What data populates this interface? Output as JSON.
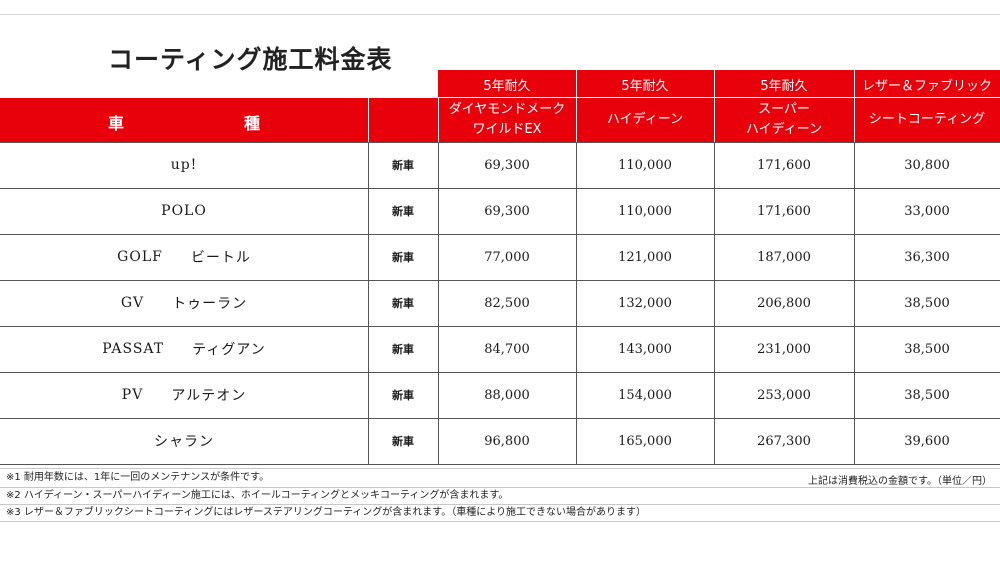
{
  "title": "コーティング施工料金表",
  "header": {
    "car_label_1": "車",
    "car_label_2": "種",
    "columns": [
      {
        "top": "5年耐久",
        "name_1": "ダイヤモンドメーク",
        "name_2": "ワイルドEX"
      },
      {
        "top": "5年耐久",
        "name_1": "ハイディーン",
        "name_2": ""
      },
      {
        "top": "5年耐久",
        "name_1": "スーパー",
        "name_2": "ハイディーン"
      },
      {
        "top": "レザー＆ファブリック",
        "name_1": "シートコーティング",
        "name_2": ""
      }
    ]
  },
  "rows": [
    {
      "model": "up!",
      "model_jp": "",
      "kind": "新車",
      "p1": "69,300",
      "p2": "110,000",
      "p3": "171,600",
      "p4": "30,800"
    },
    {
      "model": "POLO",
      "model_jp": "",
      "kind": "新車",
      "p1": "69,300",
      "p2": "110,000",
      "p3": "171,600",
      "p4": "33,000"
    },
    {
      "model": "GOLF",
      "model_jp": "ビートル",
      "kind": "新車",
      "p1": "77,000",
      "p2": "121,000",
      "p3": "187,000",
      "p4": "36,300"
    },
    {
      "model": "GV",
      "model_jp": "トゥーラン",
      "kind": "新車",
      "p1": "82,500",
      "p2": "132,000",
      "p3": "206,800",
      "p4": "38,500"
    },
    {
      "model": "PASSAT",
      "model_jp": "ティグアン",
      "kind": "新車",
      "p1": "84,700",
      "p2": "143,000",
      "p3": "231,000",
      "p4": "38,500"
    },
    {
      "model": "PV",
      "model_jp": "アルテオン",
      "kind": "新車",
      "p1": "88,000",
      "p2": "154,000",
      "p3": "253,000",
      "p4": "38,500"
    },
    {
      "model": "シャラン",
      "model_jp": "",
      "kind": "新車",
      "p1": "96,800",
      "p2": "165,000",
      "p3": "267,300",
      "p4": "39,600"
    }
  ],
  "notes": [
    "※1 耐用年数には、1年に一回のメンテナンスが条件です。",
    "※2 ハイディーン・スーパーハイディーン施工には、ホイールコーティングとメッキコーティングが含まれます。",
    "※3 レザー＆ファブリックシートコーティングにはレザーステアリングコーティングが含まれます。（車種により施工できない場合があります）"
  ],
  "tax_note": "上記は消費税込の金額です。（単位／円）",
  "colors": {
    "header_red": "#e8000b",
    "grid": "#555555"
  }
}
